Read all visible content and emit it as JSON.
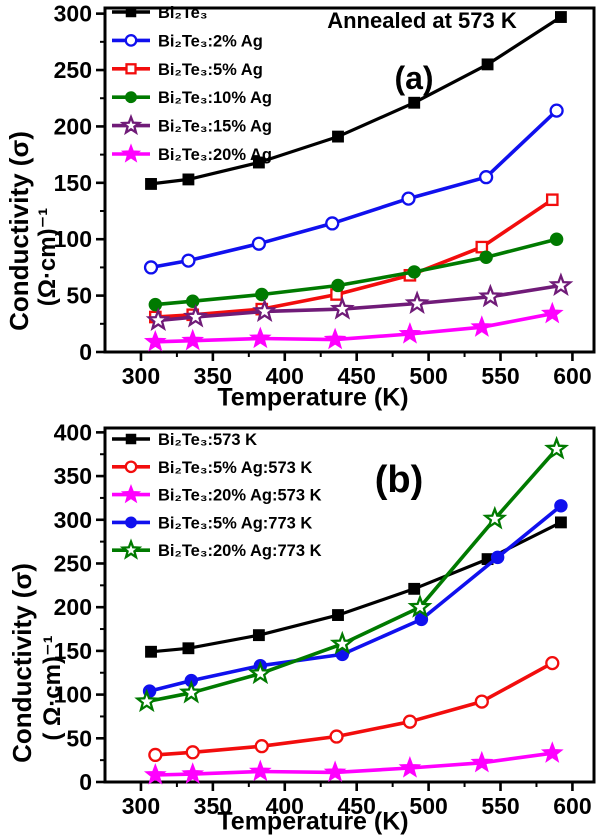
{
  "figure": {
    "background": "#ffffff",
    "frame_color": "#000000"
  },
  "chart_data": [
    {
      "id": "panel-a",
      "type": "line",
      "panel_label": "(a)",
      "annotation": "Annealed at 573 K",
      "xlabel": "Temperature (K)",
      "ylabel_line1": "Conductivity (σ)",
      "ylabel_line2": "(Ω·cm)⁻¹",
      "xlim": [
        275,
        615
      ],
      "ylim": [
        0,
        305
      ],
      "x_ticks": [
        300,
        350,
        400,
        450,
        500,
        550,
        600
      ],
      "y_ticks": [
        0,
        50,
        100,
        150,
        200,
        250,
        300
      ],
      "x_minor_step": 25,
      "y_minor_step": 25,
      "grid": false,
      "legend_position": "top-left",
      "series": [
        {
          "label": "Bi₂Te₃",
          "color": "#000000",
          "marker": "square",
          "fill": "filled",
          "x": [
            307,
            333,
            382,
            437,
            490,
            541,
            592
          ],
          "y": [
            149,
            153,
            168,
            191,
            221,
            255,
            297
          ]
        },
        {
          "label": "Bi₂Te₃:2% Ag",
          "color": "#1010ee",
          "marker": "circle",
          "fill": "open",
          "x": [
            307,
            333,
            382,
            433,
            486,
            540,
            589
          ],
          "y": [
            75,
            81,
            96,
            114,
            136,
            155,
            214
          ]
        },
        {
          "label": "Bi₂Te₃:5% Ag",
          "color": "#f20d0d",
          "marker": "square",
          "fill": "open",
          "x": [
            310,
            336,
            384,
            436,
            487,
            537,
            586
          ],
          "y": [
            31,
            33,
            38,
            51,
            68,
            93,
            135
          ]
        },
        {
          "label": "Bi₂Te₃:10% Ag",
          "color": "#007a00",
          "marker": "circle",
          "fill": "filled",
          "x": [
            310,
            336,
            384,
            437,
            490,
            540,
            589
          ],
          "y": [
            42,
            45,
            51,
            59,
            71,
            84,
            100
          ]
        },
        {
          "label": "Bi₂Te₃:15% Ag",
          "color": "#701b78",
          "marker": "star",
          "fill": "open",
          "x": [
            312,
            338,
            386,
            440,
            492,
            543,
            592
          ],
          "y": [
            28,
            31,
            36,
            38,
            43,
            49,
            59
          ]
        },
        {
          "label": "Bi₂Te₃:20% Ag",
          "color": "#ff00ff",
          "marker": "star",
          "fill": "filled",
          "x": [
            310,
            336,
            383,
            435,
            487,
            537,
            586
          ],
          "y": [
            9,
            10,
            12,
            11,
            16,
            22,
            34
          ]
        }
      ]
    },
    {
      "id": "panel-b",
      "type": "line",
      "panel_label": "(b)",
      "annotation": "",
      "xlabel": "Temperature (K)",
      "ylabel_line1": "Conductivity (σ)",
      "ylabel_line2": "( Ω·cm)⁻¹",
      "xlim": [
        275,
        615
      ],
      "ylim": [
        0,
        405
      ],
      "x_ticks": [
        300,
        350,
        400,
        450,
        500,
        550,
        600
      ],
      "y_ticks": [
        0,
        50,
        100,
        150,
        200,
        250,
        300,
        350,
        400
      ],
      "x_minor_step": 25,
      "y_minor_step": 25,
      "grid": false,
      "legend_position": "top-left",
      "series": [
        {
          "label": "Bi₂Te₃:573 K",
          "color": "#000000",
          "marker": "square",
          "fill": "filled",
          "x": [
            307,
            333,
            382,
            437,
            490,
            541,
            592
          ],
          "y": [
            149,
            153,
            168,
            191,
            221,
            255,
            297
          ]
        },
        {
          "label": "Bi₂Te₃:5% Ag:573 K",
          "color": "#f20d0d",
          "marker": "circle",
          "fill": "open",
          "x": [
            310,
            336,
            384,
            436,
            487,
            537,
            586
          ],
          "y": [
            31,
            34,
            41,
            52,
            69,
            92,
            136
          ]
        },
        {
          "label": "Bi₂Te₃:20% Ag:573 K",
          "color": "#ff00ff",
          "marker": "star",
          "fill": "filled",
          "x": [
            310,
            336,
            383,
            435,
            487,
            537,
            586
          ],
          "y": [
            8,
            9,
            12,
            11,
            16,
            22,
            33
          ]
        },
        {
          "label": "Bi₂Te₃:5% Ag:773 K",
          "color": "#1010ee",
          "marker": "circle",
          "fill": "filled",
          "x": [
            306,
            335,
            383,
            440,
            495,
            548,
            592
          ],
          "y": [
            104,
            116,
            133,
            146,
            186,
            257,
            316
          ]
        },
        {
          "label": "Bi₂Te₃:20% Ag:773 K",
          "color": "#007a00",
          "marker": "star",
          "fill": "open",
          "x": [
            304,
            335,
            383,
            440,
            494,
            546,
            589
          ],
          "y": [
            92,
            102,
            124,
            158,
            200,
            301,
            381
          ]
        }
      ]
    }
  ]
}
